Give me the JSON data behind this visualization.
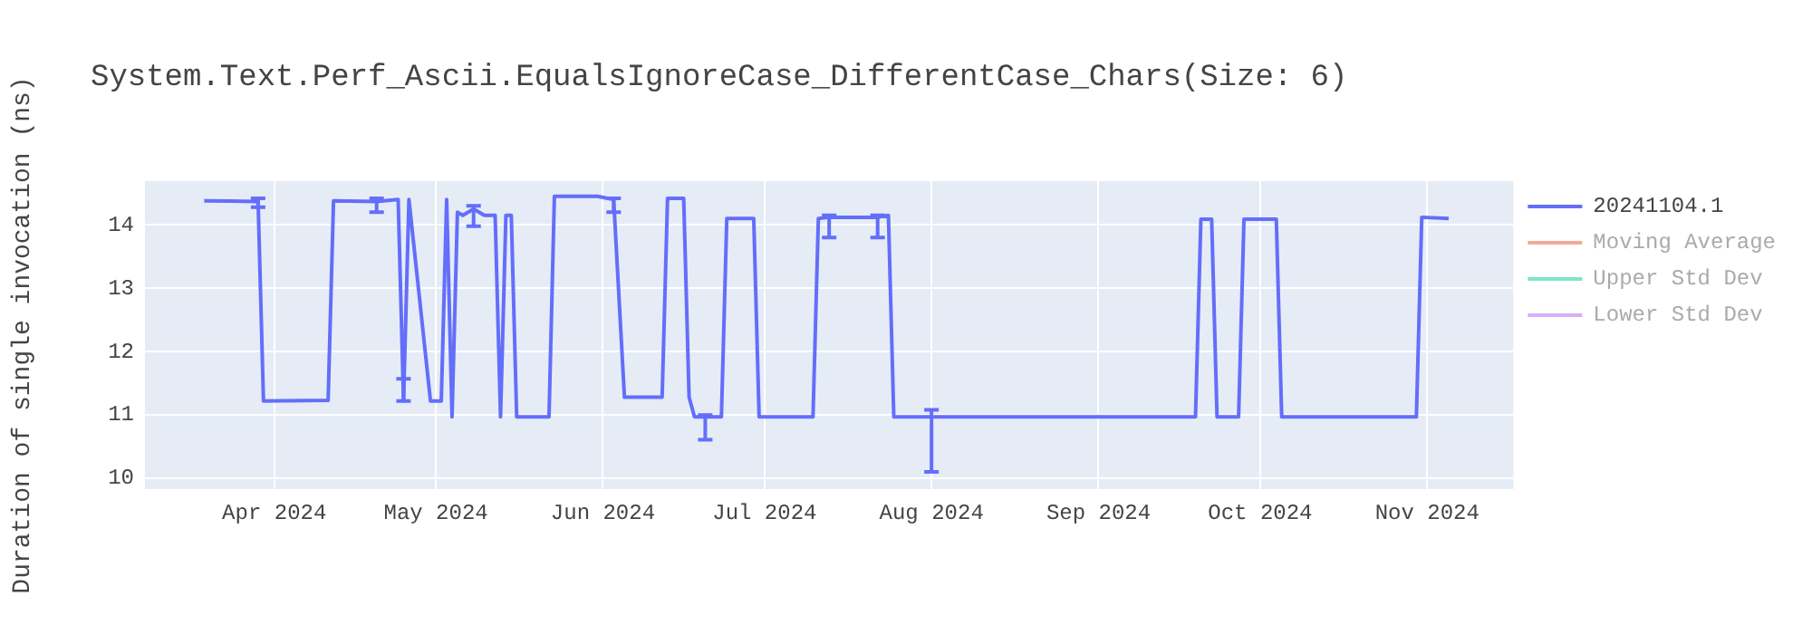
{
  "chart_data": {
    "type": "line",
    "title": "System.Text.Perf_Ascii.EqualsIgnoreCase_DifferentCase_Chars(Size: 6)",
    "ylabel": "Duration of single invocation (ns)",
    "x": [
      "2024-03-19",
      "2024-03-29",
      "2024-03-30",
      "2024-04-11",
      "2024-04-12",
      "2024-04-20",
      "2024-04-24",
      "2024-04-25",
      "2024-04-26",
      "2024-04-30",
      "2024-05-02",
      "2024-05-03",
      "2024-05-04",
      "2024-05-05",
      "2024-05-06",
      "2024-05-08",
      "2024-05-10",
      "2024-05-12",
      "2024-05-13",
      "2024-05-14",
      "2024-05-15",
      "2024-05-16",
      "2024-05-22",
      "2024-05-23",
      "2024-05-31",
      "2024-06-03",
      "2024-06-05",
      "2024-06-12",
      "2024-06-13",
      "2024-06-16",
      "2024-06-17",
      "2024-06-18",
      "2024-06-20",
      "2024-06-23",
      "2024-06-24",
      "2024-06-29",
      "2024-06-30",
      "2024-07-10",
      "2024-07-11",
      "2024-07-13",
      "2024-07-22",
      "2024-07-24",
      "2024-07-25",
      "2024-08-01",
      "2024-09-19",
      "2024-09-20",
      "2024-09-22",
      "2024-09-23",
      "2024-09-27",
      "2024-09-28",
      "2024-10-04",
      "2024-10-05",
      "2024-10-30",
      "2024-10-31",
      "2024-11-05"
    ],
    "series": [
      {
        "name": "20241104.1",
        "color": "#636efa",
        "values": [
          14.38,
          14.37,
          11.22,
          11.23,
          14.38,
          14.37,
          14.4,
          11.22,
          14.4,
          11.22,
          11.22,
          14.4,
          10.97,
          14.2,
          14.15,
          14.25,
          14.15,
          14.15,
          10.97,
          14.15,
          14.15,
          10.97,
          10.97,
          14.45,
          14.45,
          14.4,
          11.28,
          11.28,
          14.42,
          14.42,
          11.28,
          10.97,
          10.97,
          10.97,
          14.1,
          14.1,
          10.97,
          10.97,
          14.1,
          14.12,
          14.12,
          14.15,
          10.97,
          10.97,
          10.97,
          14.09,
          14.09,
          10.97,
          10.97,
          14.09,
          14.09,
          10.97,
          10.97,
          14.12,
          14.1
        ],
        "errors": [
          null,
          [
            14.28,
            14.42
          ],
          null,
          null,
          null,
          [
            14.2,
            14.42
          ],
          null,
          [
            11.22,
            11.57
          ],
          null,
          null,
          null,
          null,
          null,
          null,
          null,
          [
            13.98,
            14.3
          ],
          null,
          null,
          null,
          null,
          null,
          null,
          null,
          null,
          null,
          [
            14.2,
            14.42
          ],
          null,
          null,
          null,
          null,
          null,
          null,
          [
            10.61,
            11.0
          ],
          null,
          null,
          null,
          null,
          null,
          null,
          [
            13.8,
            14.15
          ],
          [
            13.8,
            14.15
          ],
          null,
          null,
          [
            10.1,
            11.08
          ],
          null,
          null,
          null,
          null,
          null,
          null,
          null,
          null,
          null,
          null,
          null
        ]
      },
      {
        "name": "Moving Average",
        "color": "#f4a998",
        "values": [
          null,
          null,
          null,
          null,
          null,
          null,
          null,
          null,
          null,
          null,
          null,
          null,
          null,
          null,
          null,
          null,
          null,
          null,
          null,
          null,
          null,
          null,
          null,
          null,
          null,
          null,
          null,
          null,
          null,
          null,
          null,
          null,
          null,
          null,
          null,
          null,
          null,
          null,
          null,
          null,
          null,
          null,
          null,
          null,
          null,
          null,
          null,
          null,
          null,
          null,
          null,
          null,
          null,
          null,
          null
        ]
      },
      {
        "name": "Upper Std Dev",
        "color": "#7fe5ca",
        "values": [
          null,
          null,
          null,
          null,
          null,
          null,
          null,
          null,
          null,
          null,
          null,
          null,
          null,
          null,
          null,
          null,
          null,
          null,
          null,
          null,
          null,
          null,
          null,
          null,
          null,
          null,
          null,
          null,
          null,
          null,
          null,
          null,
          null,
          null,
          null,
          null,
          null,
          null,
          null,
          null,
          null,
          null,
          null,
          null,
          null,
          null,
          null,
          null,
          null,
          null,
          null,
          null,
          null,
          null,
          null
        ]
      },
      {
        "name": "Lower Std Dev",
        "color": "#d5b1fc",
        "values": [
          null,
          null,
          null,
          null,
          null,
          null,
          null,
          null,
          null,
          null,
          null,
          null,
          null,
          null,
          null,
          null,
          null,
          null,
          null,
          null,
          null,
          null,
          null,
          null,
          null,
          null,
          null,
          null,
          null,
          null,
          null,
          null,
          null,
          null,
          null,
          null,
          null,
          null,
          null,
          null,
          null,
          null,
          null,
          null,
          null,
          null,
          null,
          null,
          null,
          null,
          null,
          null,
          null,
          null,
          null
        ]
      }
    ],
    "xlim": [
      "2024-03-08",
      "2024-11-17"
    ],
    "xticks": [
      {
        "value": "2024-04-01",
        "label": "Apr 2024"
      },
      {
        "value": "2024-05-01",
        "label": "May 2024"
      },
      {
        "value": "2024-06-01",
        "label": "Jun 2024"
      },
      {
        "value": "2024-07-01",
        "label": "Jul 2024"
      },
      {
        "value": "2024-08-01",
        "label": "Aug 2024"
      },
      {
        "value": "2024-09-01",
        "label": "Sep 2024"
      },
      {
        "value": "2024-10-01",
        "label": "Oct 2024"
      },
      {
        "value": "2024-11-01",
        "label": "Nov 2024"
      }
    ],
    "ylim": [
      9.83,
      14.69
    ],
    "yticks": [
      10,
      11,
      12,
      13,
      14
    ],
    "grid": true,
    "legend": "top right",
    "marker": "none",
    "line_style": "solid"
  }
}
